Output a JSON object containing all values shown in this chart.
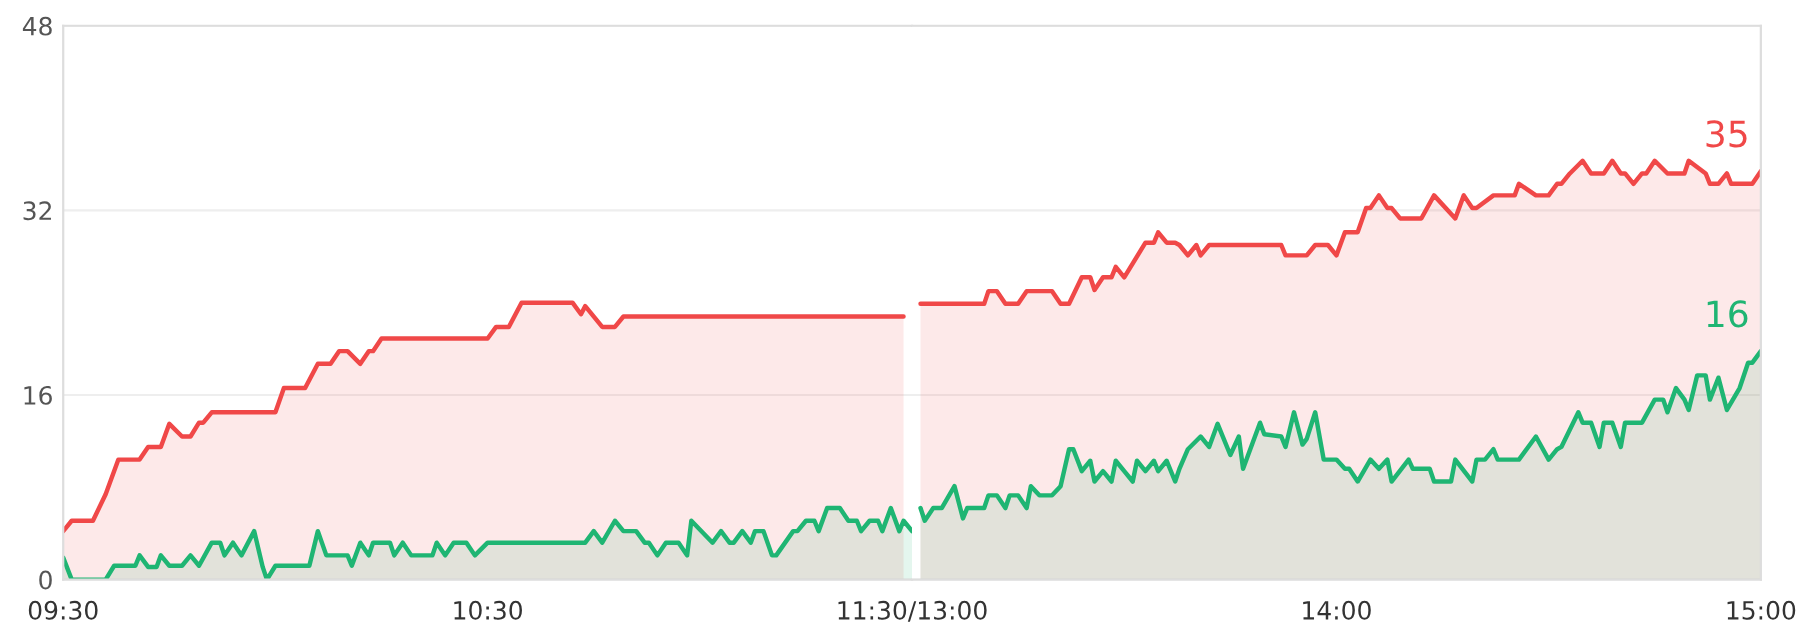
{
  "chart_data": [
    {
      "type": "area",
      "xlim": [
        9.5,
        11.5
      ],
      "ylim": [
        0,
        48
      ],
      "yticks": [
        0,
        16,
        32,
        48
      ],
      "xticks": [
        {
          "value": 9.5,
          "label": "09:30"
        },
        {
          "value": 10.5,
          "label": "10:30"
        },
        {
          "value": 11.5,
          "label": "11:30/13:00"
        }
      ],
      "grid": "y",
      "series": [
        {
          "color": "#f04848",
          "x": [
            9.5,
            9.52,
            9.57,
            9.6,
            9.63,
            9.68,
            9.7,
            9.73,
            9.75,
            9.78,
            9.8,
            9.82,
            9.83,
            9.85,
            10.0,
            10.02,
            10.07,
            10.1,
            10.13,
            10.15,
            10.17,
            10.2,
            10.22,
            10.23,
            10.25,
            10.5,
            10.52,
            10.55,
            10.58,
            10.7,
            10.72,
            10.73,
            10.77,
            10.8,
            10.82,
            11.48
          ],
          "values": [
            4.2,
            5.1,
            5.1,
            7.4,
            10.4,
            10.4,
            11.5,
            11.5,
            13.5,
            12.4,
            12.4,
            13.6,
            13.6,
            14.5,
            14.5,
            16.6,
            16.6,
            18.7,
            18.7,
            19.8,
            19.8,
            18.7,
            19.8,
            19.8,
            20.9,
            20.9,
            21.9,
            21.9,
            24.0,
            24.0,
            23.0,
            23.7,
            21.9,
            21.9,
            22.8,
            22.8
          ]
        },
        {
          "color": "#1fb573",
          "x": [
            9.5,
            9.52,
            9.6,
            9.62,
            9.67,
            9.68,
            9.7,
            9.72,
            9.73,
            9.75,
            9.78,
            9.8,
            9.82,
            9.85,
            9.87,
            9.88,
            9.9,
            9.92,
            9.95,
            9.97,
            9.98,
            10.0,
            10.08,
            10.1,
            10.12,
            10.17,
            10.18,
            10.2,
            10.22,
            10.23,
            10.27,
            10.28,
            10.3,
            10.32,
            10.37,
            10.38,
            10.4,
            10.42,
            10.45,
            10.47,
            10.5,
            10.73,
            10.75,
            10.77,
            10.8,
            10.82,
            10.85,
            10.87,
            10.88,
            10.9,
            10.92,
            10.95,
            10.97,
            10.98,
            11.03,
            11.05,
            11.07,
            11.08,
            11.1,
            11.12,
            11.13,
            11.15,
            11.17,
            11.18,
            11.22,
            11.23,
            11.25,
            11.27,
            11.28,
            11.3,
            11.33,
            11.35,
            11.37,
            11.38,
            11.4,
            11.42,
            11.43,
            11.45,
            11.47,
            11.48,
            11.5
          ],
          "values": [
            1.9,
            0,
            0,
            1.2,
            1.2,
            2.1,
            1.1,
            1.1,
            2.1,
            1.2,
            1.2,
            2.1,
            1.2,
            3.2,
            3.2,
            2.1,
            3.2,
            2.1,
            4.2,
            1.1,
            0,
            1.2,
            1.2,
            4.2,
            2.1,
            2.1,
            1.2,
            3.2,
            2.1,
            3.2,
            3.2,
            2.1,
            3.2,
            2.1,
            2.1,
            3.2,
            2.1,
            3.2,
            3.2,
            2.1,
            3.2,
            3.2,
            4.2,
            3.2,
            5.1,
            4.2,
            4.2,
            3.2,
            3.2,
            2.1,
            3.2,
            3.2,
            2.1,
            5.1,
            3.2,
            4.2,
            3.2,
            3.2,
            4.2,
            3.2,
            4.2,
            4.2,
            2.1,
            2.1,
            4.2,
            4.2,
            5.1,
            5.1,
            4.2,
            6.2,
            6.2,
            5.1,
            5.1,
            4.2,
            5.1,
            5.1,
            4.2,
            6.2,
            4.2,
            5.1,
            4.2
          ]
        }
      ]
    },
    {
      "type": "area",
      "xlim": [
        13,
        15
      ],
      "ylim": [
        0,
        48
      ],
      "yticks": [
        0,
        16,
        32,
        48
      ],
      "tick_labels": "x",
      "xticks": [
        {
          "value": 14,
          "label": "14:00"
        },
        {
          "value": 15,
          "label": "15:00"
        }
      ],
      "grid": "y",
      "annotations": [
        "35",
        "16"
      ],
      "series": [
        {
          "color": "#f04848",
          "x": [
            13.02,
            13.17,
            13.18,
            13.2,
            13.22,
            13.25,
            13.27,
            13.33,
            13.35,
            13.37,
            13.4,
            13.42,
            13.43,
            13.45,
            13.47,
            13.48,
            13.5,
            13.55,
            13.57,
            13.58,
            13.6,
            13.62,
            13.63,
            13.65,
            13.67,
            13.68,
            13.7,
            13.87,
            13.88,
            13.93,
            13.95,
            13.98,
            14.0,
            14.02,
            14.05,
            14.07,
            14.08,
            14.1,
            14.12,
            14.13,
            14.15,
            14.2,
            14.23,
            14.28,
            14.3,
            14.32,
            14.33,
            14.37,
            14.42,
            14.43,
            14.47,
            14.5,
            14.52,
            14.53,
            14.55,
            14.58,
            14.6,
            14.63,
            14.65,
            14.67,
            14.68,
            14.7,
            14.72,
            14.73,
            14.75,
            14.78,
            14.82,
            14.83,
            14.87,
            14.88,
            14.9,
            14.92,
            14.93,
            14.98,
            15.0
          ],
          "values": [
            23.9,
            23.9,
            25.0,
            25.0,
            23.9,
            23.9,
            25.0,
            25.0,
            23.9,
            23.9,
            26.2,
            26.2,
            25.1,
            26.2,
            26.2,
            27.1,
            26.2,
            29.2,
            29.2,
            30.1,
            29.2,
            29.2,
            29.0,
            28.1,
            29.0,
            28.1,
            29.0,
            29.0,
            28.1,
            28.1,
            29.0,
            29.0,
            28.1,
            30.1,
            30.1,
            32.2,
            32.2,
            33.3,
            32.2,
            32.2,
            31.3,
            31.3,
            33.3,
            31.3,
            33.3,
            32.2,
            32.2,
            33.3,
            33.3,
            34.3,
            33.3,
            33.3,
            34.3,
            34.3,
            35.2,
            36.3,
            35.2,
            35.2,
            36.3,
            35.2,
            35.2,
            34.3,
            35.2,
            35.2,
            36.3,
            35.2,
            35.2,
            36.3,
            35.2,
            34.3,
            34.3,
            35.2,
            34.3,
            34.3,
            35.4
          ]
        },
        {
          "color": "#1fb573",
          "x": [
            13.02,
            13.03,
            13.05,
            13.07,
            13.1,
            13.12,
            13.13,
            13.17,
            13.18,
            13.2,
            13.22,
            13.23,
            13.25,
            13.27,
            13.28,
            13.3,
            13.33,
            13.35,
            13.37,
            13.38,
            13.4,
            13.42,
            13.43,
            13.45,
            13.47,
            13.48,
            13.5,
            13.52,
            13.53,
            13.55,
            13.57,
            13.58,
            13.6,
            13.62,
            13.63,
            13.65,
            13.68,
            13.7,
            13.72,
            13.75,
            13.77,
            13.78,
            13.82,
            13.83,
            13.87,
            13.88,
            13.9,
            13.92,
            13.93,
            13.95,
            13.97,
            14.0,
            14.02,
            14.03,
            14.05,
            14.08,
            14.1,
            14.12,
            14.13,
            14.17,
            14.18,
            14.22,
            14.23,
            14.27,
            14.28,
            14.32,
            14.33,
            14.35,
            14.37,
            14.38,
            14.43,
            14.47,
            14.5,
            14.52,
            14.53,
            14.57,
            14.58,
            14.6,
            14.62,
            14.63,
            14.65,
            14.67,
            14.68,
            14.72,
            14.75,
            14.77,
            14.78,
            14.8,
            14.82,
            14.83,
            14.85,
            14.87,
            14.88,
            14.9,
            14.92,
            14.95,
            14.97,
            14.98,
            15.0
          ],
          "values": [
            6.2,
            5.1,
            6.2,
            6.2,
            8.1,
            5.3,
            6.2,
            6.2,
            7.3,
            7.3,
            6.2,
            7.3,
            7.3,
            6.2,
            8.1,
            7.3,
            7.3,
            8.1,
            11.3,
            11.3,
            9.4,
            10.3,
            8.5,
            9.4,
            8.5,
            10.3,
            9.4,
            8.5,
            10.3,
            9.4,
            10.3,
            9.4,
            10.3,
            8.5,
            9.6,
            11.3,
            12.4,
            11.5,
            13.5,
            10.8,
            12.4,
            9.6,
            13.6,
            12.6,
            12.4,
            11.5,
            14.5,
            11.7,
            12.2,
            14.5,
            10.4,
            10.4,
            9.6,
            9.6,
            8.5,
            10.4,
            9.6,
            10.4,
            8.5,
            10.4,
            9.6,
            9.6,
            8.5,
            8.5,
            10.4,
            8.5,
            10.4,
            10.4,
            11.3,
            10.4,
            10.4,
            12.4,
            10.4,
            11.3,
            11.5,
            14.5,
            13.6,
            13.6,
            11.5,
            13.6,
            13.6,
            11.5,
            13.6,
            13.6,
            15.6,
            15.6,
            14.5,
            16.6,
            15.6,
            14.7,
            17.7,
            17.7,
            15.6,
            17.5,
            14.7,
            16.6,
            18.8,
            18.8,
            19.8
          ]
        }
      ]
    }
  ]
}
